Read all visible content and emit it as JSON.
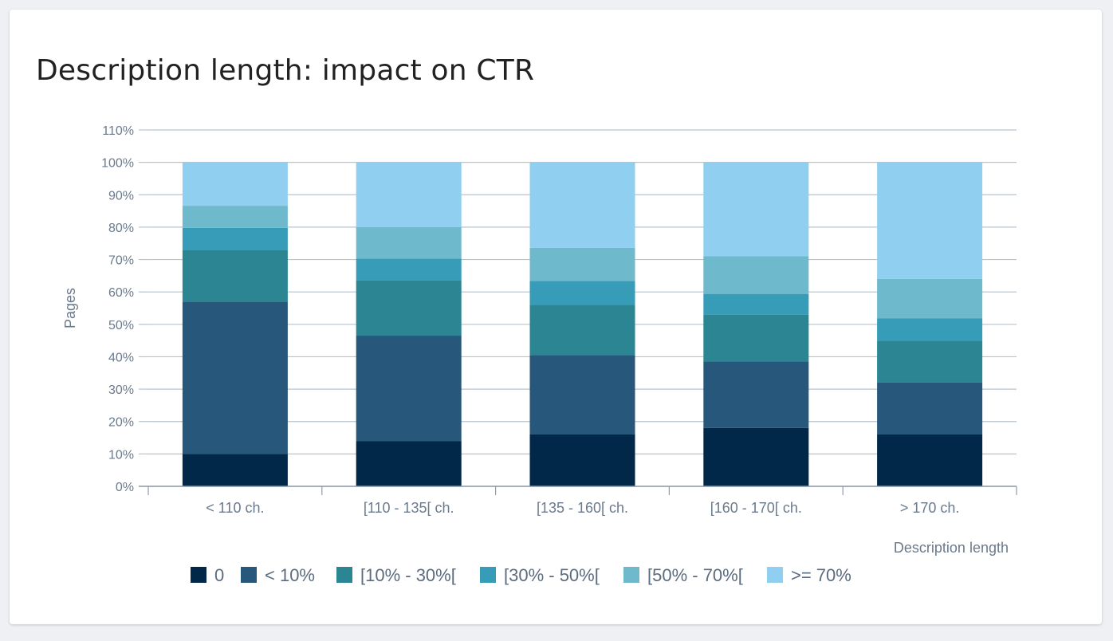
{
  "card": {
    "title": "Description length: impact on CTR"
  },
  "chart_data": {
    "type": "bar",
    "stacked": true,
    "title": "Description length: impact on CTR",
    "xlabel": "Description length",
    "ylabel": "Pages",
    "ylim": [
      0,
      110
    ],
    "yticks": [
      0,
      10,
      20,
      30,
      40,
      50,
      60,
      70,
      80,
      90,
      100,
      110
    ],
    "ytick_suffix": "%",
    "grid": true,
    "legend_position": "bottom",
    "categories": [
      "< 110 ch.",
      "[110 - 135[ ch.",
      "[135 - 160[ ch.",
      "[160 - 170[ ch.",
      "> 170 ch."
    ],
    "series": [
      {
        "name": "0",
        "color": "#012749",
        "values": [
          10,
          14,
          16,
          18,
          16
        ]
      },
      {
        "name": "< 10%",
        "color": "#27577a",
        "values": [
          47,
          32.5,
          24.5,
          20.5,
          16
        ]
      },
      {
        "name": "[10% - 30%[",
        "color": "#2c8593",
        "values": [
          16,
          17,
          15.5,
          14.5,
          13
        ]
      },
      {
        "name": "[30% - 50%[",
        "color": "#369cb8",
        "values": [
          6.8,
          6.8,
          7.4,
          6.4,
          6.8
        ]
      },
      {
        "name": "[50% - 70%[",
        "color": "#6fb9cd",
        "values": [
          6.8,
          9.7,
          10.2,
          11.6,
          12.2
        ]
      },
      {
        "name": ">= 70%",
        "color": "#91cff1",
        "values": [
          13.4,
          20,
          26.4,
          29,
          36
        ]
      }
    ]
  }
}
